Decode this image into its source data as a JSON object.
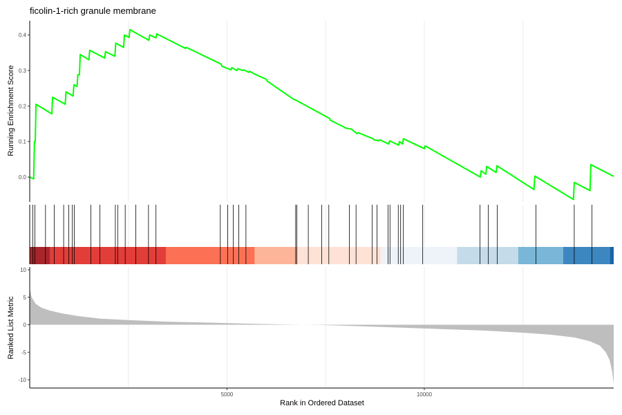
{
  "chart_data": {
    "type": "line",
    "title": "ficolin-1-rich granule membrane",
    "xlabel": "Rank in Ordered Dataset",
    "xlim": [
      0,
      14800
    ],
    "x_ticks": [
      5000,
      10000
    ],
    "grid": true,
    "line_color": "#00ff00",
    "metric_fill_color": "#bebebe",
    "enrichment_panel": {
      "ylabel": "Running Enrichment Score",
      "ylim": [
        -0.07,
        0.44
      ],
      "y_ticks": [
        0.0,
        0.1,
        0.2,
        0.3,
        0.4
      ],
      "series": [
        {
          "points": [
            [
              0,
              0.0
            ],
            [
              100,
              -0.005
            ],
            [
              120,
              0.1
            ],
            [
              140,
              0.1
            ],
            [
              160,
              0.205
            ],
            [
              560,
              0.178
            ],
            [
              580,
              0.225
            ],
            [
              900,
              0.205
            ],
            [
              920,
              0.24
            ],
            [
              1100,
              0.228
            ],
            [
              1120,
              0.26
            ],
            [
              1200,
              0.255
            ],
            [
              1220,
              0.288
            ],
            [
              1260,
              0.288
            ],
            [
              1280,
              0.345
            ],
            [
              1500,
              0.33
            ],
            [
              1520,
              0.357
            ],
            [
              1900,
              0.335
            ],
            [
              1920,
              0.353
            ],
            [
              2160,
              0.34
            ],
            [
              2180,
              0.377
            ],
            [
              2380,
              0.365
            ],
            [
              2400,
              0.4
            ],
            [
              2520,
              0.393
            ],
            [
              2540,
              0.415
            ],
            [
              3020,
              0.385
            ],
            [
              3040,
              0.4
            ],
            [
              3200,
              0.392
            ],
            [
              3220,
              0.403
            ],
            [
              3950,
              0.362
            ],
            [
              3970,
              0.365
            ],
            [
              4850,
              0.318
            ],
            [
              4870,
              0.312
            ],
            [
              5100,
              0.302
            ],
            [
              5120,
              0.308
            ],
            [
              5250,
              0.3
            ],
            [
              5270,
              0.305
            ],
            [
              5400,
              0.3
            ],
            [
              5420,
              0.302
            ],
            [
              5550,
              0.295
            ],
            [
              5570,
              0.298
            ],
            [
              5700,
              0.29
            ],
            [
              6000,
              0.275
            ],
            [
              6020,
              0.27
            ],
            [
              6700,
              0.218
            ],
            [
              6720,
              0.218
            ],
            [
              7600,
              0.165
            ],
            [
              7620,
              0.16
            ],
            [
              7980,
              0.14
            ],
            [
              8000,
              0.138
            ],
            [
              8150,
              0.135
            ],
            [
              8300,
              0.122
            ],
            [
              8320,
              0.125
            ],
            [
              8700,
              0.108
            ],
            [
              8720,
              0.105
            ],
            [
              8850,
              0.102
            ],
            [
              8870,
              0.105
            ],
            [
              9100,
              0.093
            ],
            [
              9120,
              0.102
            ],
            [
              9350,
              0.09
            ],
            [
              9370,
              0.1
            ],
            [
              9450,
              0.093
            ],
            [
              9470,
              0.108
            ],
            [
              10000,
              0.08
            ],
            [
              10020,
              0.088
            ],
            [
              11420,
              0.0
            ],
            [
              11440,
              0.018
            ],
            [
              11560,
              0.008
            ],
            [
              11580,
              0.03
            ],
            [
              11820,
              0.013
            ],
            [
              11840,
              0.032
            ],
            [
              12780,
              -0.035
            ],
            [
              12800,
              0.003
            ],
            [
              13780,
              -0.063
            ],
            [
              13800,
              -0.015
            ],
            [
              14200,
              -0.038
            ],
            [
              14220,
              0.035
            ],
            [
              14800,
              0.002
            ]
          ]
        }
      ]
    },
    "hits": [
      80,
      130,
      400,
      620,
      860,
      990,
      1080,
      1130,
      1550,
      1780,
      2170,
      2230,
      2420,
      2690,
      3010,
      3200,
      4830,
      5020,
      5160,
      5300,
      5480,
      6740,
      6770,
      7060,
      7400,
      7580,
      8100,
      8270,
      8680,
      8800,
      9080,
      9130,
      9340,
      9400,
      9470,
      9960,
      11410,
      11620,
      11850,
      12830,
      13800,
      14250
    ],
    "color_bands": [
      {
        "from": 0,
        "to": 520,
        "color": "#a8262b"
      },
      {
        "from": 520,
        "to": 3450,
        "color": "#e23d39"
      },
      {
        "from": 3450,
        "to": 5700,
        "color": "#fc7155"
      },
      {
        "from": 5700,
        "to": 6780,
        "color": "#fdb59a"
      },
      {
        "from": 6780,
        "to": 8900,
        "color": "#fee2d6"
      },
      {
        "from": 8900,
        "to": 10830,
        "color": "#eef3fa"
      },
      {
        "from": 10830,
        "to": 12380,
        "color": "#c4dbe9"
      },
      {
        "from": 12380,
        "to": 13520,
        "color": "#79b6d8"
      },
      {
        "from": 13520,
        "to": 14700,
        "color": "#3d87c1"
      },
      {
        "from": 14700,
        "to": 14800,
        "color": "#1c63a8"
      }
    ],
    "metric_panel": {
      "ylabel": "Ranked List Metric",
      "ylim": [
        -11.5,
        10.5
      ],
      "y_ticks": [
        10,
        5,
        0,
        -5,
        -10
      ],
      "profile": [
        [
          0,
          6.5
        ],
        [
          50,
          5.0
        ],
        [
          150,
          3.8
        ],
        [
          300,
          3.1
        ],
        [
          500,
          2.6
        ],
        [
          800,
          2.1
        ],
        [
          1200,
          1.6
        ],
        [
          1800,
          1.1
        ],
        [
          2500,
          0.85
        ],
        [
          3500,
          0.55
        ],
        [
          4500,
          0.4
        ],
        [
          5500,
          0.2
        ],
        [
          6500,
          0.05
        ],
        [
          7400,
          -0.05
        ],
        [
          8500,
          -0.3
        ],
        [
          9500,
          -0.55
        ],
        [
          10500,
          -0.8
        ],
        [
          11500,
          -1.05
        ],
        [
          12500,
          -1.45
        ],
        [
          13200,
          -1.8
        ],
        [
          13800,
          -2.3
        ],
        [
          14200,
          -3.0
        ],
        [
          14450,
          -3.8
        ],
        [
          14600,
          -5.0
        ],
        [
          14700,
          -6.5
        ],
        [
          14760,
          -8.5
        ],
        [
          14800,
          -10.8
        ]
      ]
    }
  }
}
